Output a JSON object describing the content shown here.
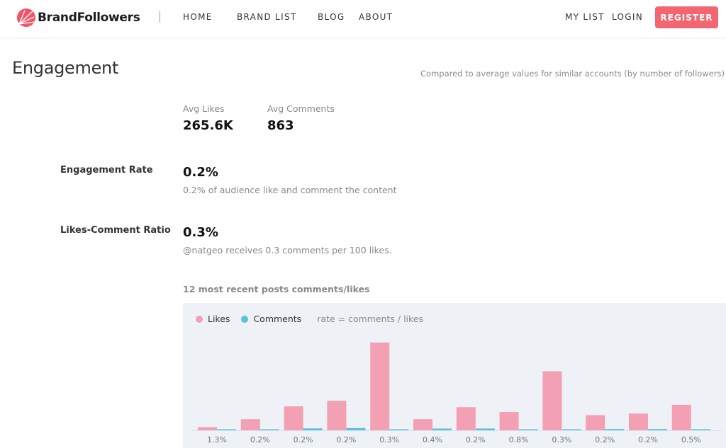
{
  "nav": {
    "brand": "BrandFollowers",
    "links": [
      "HOME",
      "BRAND LIST",
      "BLOG",
      "ABOUT"
    ],
    "my_list": "MY LIST",
    "login": "LOGIN",
    "register": "REGISTER"
  },
  "engagement": {
    "title": "Engagement",
    "compare_note": "Compared to average values for similar accounts (by number of followers)",
    "avg_likes_label": "Avg Likes",
    "avg_likes_value": "265.6K",
    "avg_comments_label": "Avg Comments",
    "avg_comments_value": "863",
    "rate_label": "Engagement Rate",
    "rate_value": "0.2%",
    "rate_desc": "0.2% of audience like and comment the content",
    "ratio_label": "Likes-Comment Ratio",
    "ratio_value": "0.3%",
    "ratio_desc": "@natgeo receives 0.3 comments per 100 likes.",
    "chart_title": "12 most recent posts comments/likes"
  },
  "legend": {
    "likes": "Likes",
    "comments": "Comments",
    "note": "rate = comments / likes"
  },
  "colors": {
    "likes": "#f3a0b4",
    "comments": "#5bc0de",
    "register": "#f46572",
    "brand": "#f0566a"
  },
  "chart_data": {
    "type": "bar",
    "categories": [
      "1.3%",
      "0.2%",
      "0.2%",
      "0.2%",
      "0.3%",
      "0.4%",
      "0.2%",
      "0.8%",
      "0.3%",
      "0.2%",
      "0.2%",
      "0.5%"
    ],
    "series": [
      {
        "name": "Likes",
        "values": [
          4,
          14,
          30,
          37,
          110,
          14,
          29,
          23,
          74,
          19,
          21,
          32
        ]
      },
      {
        "name": "Comments",
        "values": [
          0.6,
          1.0,
          2.4,
          2.8,
          1.2,
          2.2,
          2.3,
          0.5,
          1.0,
          1.6,
          1.6,
          0.8
        ]
      }
    ],
    "ylim": [
      0,
      110
    ],
    "title": "",
    "xlabel": "",
    "ylabel": ""
  }
}
